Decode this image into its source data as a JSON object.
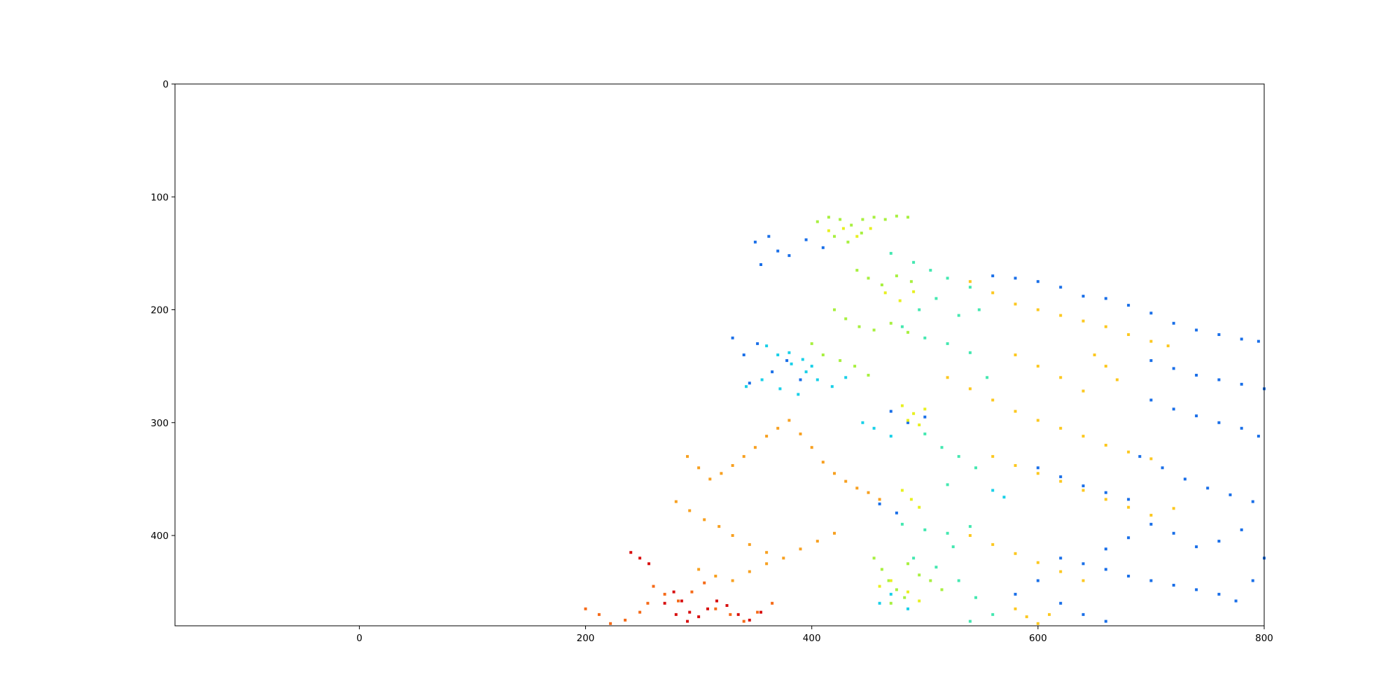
{
  "chart_data": {
    "type": "scatter",
    "title": "",
    "xlabel": "",
    "ylabel": "",
    "xlim": [
      -163,
      800
    ],
    "ylim": [
      480,
      0
    ],
    "y_inverted": true,
    "grid": false,
    "legend": "none",
    "x_ticks": [
      0,
      200,
      400,
      600,
      800
    ],
    "y_ticks": [
      0,
      100,
      200,
      300,
      400
    ],
    "series": [
      {
        "color": "#1a6fe8",
        "points": [
          [
            350,
            140
          ],
          [
            362,
            135
          ],
          [
            370,
            148
          ],
          [
            355,
            160
          ],
          [
            380,
            152
          ],
          [
            395,
            138
          ],
          [
            410,
            145
          ],
          [
            330,
            225
          ],
          [
            340,
            240
          ],
          [
            352,
            230
          ],
          [
            365,
            255
          ],
          [
            378,
            245
          ],
          [
            345,
            265
          ],
          [
            390,
            262
          ],
          [
            470,
            290
          ],
          [
            485,
            300
          ],
          [
            500,
            295
          ],
          [
            460,
            372
          ],
          [
            475,
            380
          ],
          [
            560,
            170
          ],
          [
            580,
            172
          ],
          [
            600,
            175
          ],
          [
            620,
            180
          ],
          [
            640,
            188
          ],
          [
            660,
            190
          ],
          [
            680,
            196
          ],
          [
            700,
            203
          ],
          [
            720,
            212
          ],
          [
            740,
            218
          ],
          [
            760,
            222
          ],
          [
            780,
            226
          ],
          [
            795,
            228
          ],
          [
            700,
            245
          ],
          [
            720,
            252
          ],
          [
            740,
            258
          ],
          [
            760,
            262
          ],
          [
            780,
            266
          ],
          [
            800,
            270
          ],
          [
            700,
            280
          ],
          [
            720,
            288
          ],
          [
            740,
            294
          ],
          [
            760,
            300
          ],
          [
            780,
            305
          ],
          [
            795,
            312
          ],
          [
            690,
            330
          ],
          [
            710,
            340
          ],
          [
            730,
            350
          ],
          [
            750,
            358
          ],
          [
            770,
            364
          ],
          [
            790,
            370
          ],
          [
            600,
            340
          ],
          [
            620,
            348
          ],
          [
            640,
            356
          ],
          [
            660,
            362
          ],
          [
            680,
            368
          ],
          [
            620,
            420
          ],
          [
            640,
            425
          ],
          [
            660,
            430
          ],
          [
            680,
            436
          ],
          [
            700,
            440
          ],
          [
            720,
            444
          ],
          [
            740,
            448
          ],
          [
            760,
            452
          ],
          [
            775,
            458
          ],
          [
            790,
            440
          ],
          [
            800,
            420
          ],
          [
            780,
            395
          ],
          [
            760,
            405
          ],
          [
            740,
            410
          ],
          [
            720,
            398
          ],
          [
            700,
            390
          ],
          [
            680,
            402
          ],
          [
            660,
            412
          ],
          [
            620,
            460
          ],
          [
            640,
            470
          ],
          [
            660,
            476
          ],
          [
            600,
            440
          ],
          [
            580,
            452
          ]
        ]
      },
      {
        "color": "#19d0e8",
        "points": [
          [
            360,
            232
          ],
          [
            370,
            240
          ],
          [
            382,
            248
          ],
          [
            395,
            255
          ],
          [
            405,
            262
          ],
          [
            418,
            268
          ],
          [
            430,
            260
          ],
          [
            342,
            268
          ],
          [
            356,
            262
          ],
          [
            372,
            270
          ],
          [
            388,
            275
          ],
          [
            380,
            238
          ],
          [
            392,
            244
          ],
          [
            400,
            250
          ],
          [
            445,
            300
          ],
          [
            455,
            305
          ],
          [
            470,
            312
          ],
          [
            560,
            360
          ],
          [
            570,
            366
          ],
          [
            460,
            460
          ],
          [
            470,
            452
          ],
          [
            485,
            465
          ]
        ]
      },
      {
        "color": "#44e8b0",
        "points": [
          [
            470,
            150
          ],
          [
            490,
            158
          ],
          [
            505,
            165
          ],
          [
            520,
            172
          ],
          [
            540,
            180
          ],
          [
            548,
            200
          ],
          [
            530,
            205
          ],
          [
            510,
            190
          ],
          [
            495,
            200
          ],
          [
            480,
            215
          ],
          [
            500,
            225
          ],
          [
            520,
            230
          ],
          [
            540,
            238
          ],
          [
            555,
            260
          ],
          [
            500,
            310
          ],
          [
            515,
            322
          ],
          [
            530,
            330
          ],
          [
            545,
            340
          ],
          [
            520,
            355
          ],
          [
            480,
            390
          ],
          [
            500,
            395
          ],
          [
            520,
            398
          ],
          [
            540,
            392
          ],
          [
            525,
            410
          ],
          [
            490,
            420
          ],
          [
            510,
            428
          ],
          [
            530,
            440
          ],
          [
            545,
            455
          ],
          [
            560,
            470
          ],
          [
            540,
            476
          ]
        ]
      },
      {
        "color": "#a8f040",
        "points": [
          [
            405,
            122
          ],
          [
            415,
            118
          ],
          [
            425,
            120
          ],
          [
            435,
            125
          ],
          [
            445,
            120
          ],
          [
            455,
            118
          ],
          [
            465,
            120
          ],
          [
            475,
            117
          ],
          [
            485,
            118
          ],
          [
            420,
            135
          ],
          [
            432,
            140
          ],
          [
            444,
            132
          ],
          [
            440,
            165
          ],
          [
            450,
            172
          ],
          [
            462,
            178
          ],
          [
            475,
            170
          ],
          [
            488,
            175
          ],
          [
            420,
            200
          ],
          [
            430,
            208
          ],
          [
            442,
            215
          ],
          [
            455,
            218
          ],
          [
            470,
            212
          ],
          [
            485,
            220
          ],
          [
            400,
            230
          ],
          [
            410,
            240
          ],
          [
            425,
            245
          ],
          [
            438,
            250
          ],
          [
            450,
            258
          ],
          [
            455,
            420
          ],
          [
            462,
            430
          ],
          [
            468,
            440
          ],
          [
            475,
            448
          ],
          [
            485,
            425
          ],
          [
            495,
            435
          ],
          [
            505,
            440
          ],
          [
            515,
            448
          ],
          [
            470,
            460
          ],
          [
            482,
            455
          ]
        ]
      },
      {
        "color": "#e8f020",
        "points": [
          [
            415,
            130
          ],
          [
            428,
            128
          ],
          [
            440,
            135
          ],
          [
            452,
            128
          ],
          [
            465,
            185
          ],
          [
            478,
            192
          ],
          [
            490,
            184
          ],
          [
            480,
            285
          ],
          [
            490,
            292
          ],
          [
            500,
            288
          ],
          [
            485,
            298
          ],
          [
            495,
            302
          ],
          [
            480,
            360
          ],
          [
            488,
            368
          ],
          [
            495,
            375
          ],
          [
            460,
            445
          ],
          [
            470,
            440
          ],
          [
            485,
            450
          ],
          [
            495,
            458
          ]
        ]
      },
      {
        "color": "#fcc820",
        "points": [
          [
            540,
            175
          ],
          [
            560,
            185
          ],
          [
            580,
            195
          ],
          [
            600,
            200
          ],
          [
            620,
            205
          ],
          [
            640,
            210
          ],
          [
            660,
            215
          ],
          [
            680,
            222
          ],
          [
            700,
            228
          ],
          [
            715,
            232
          ],
          [
            520,
            260
          ],
          [
            540,
            270
          ],
          [
            560,
            280
          ],
          [
            580,
            290
          ],
          [
            600,
            298
          ],
          [
            620,
            305
          ],
          [
            640,
            312
          ],
          [
            660,
            320
          ],
          [
            680,
            326
          ],
          [
            700,
            332
          ],
          [
            560,
            330
          ],
          [
            580,
            338
          ],
          [
            600,
            345
          ],
          [
            620,
            352
          ],
          [
            640,
            360
          ],
          [
            660,
            368
          ],
          [
            680,
            375
          ],
          [
            700,
            382
          ],
          [
            720,
            376
          ],
          [
            540,
            400
          ],
          [
            560,
            408
          ],
          [
            580,
            416
          ],
          [
            600,
            424
          ],
          [
            620,
            432
          ],
          [
            640,
            440
          ],
          [
            580,
            465
          ],
          [
            590,
            472
          ],
          [
            600,
            478
          ],
          [
            610,
            470
          ],
          [
            650,
            240
          ],
          [
            660,
            250
          ],
          [
            670,
            262
          ],
          [
            640,
            272
          ],
          [
            620,
            260
          ],
          [
            600,
            250
          ],
          [
            580,
            240
          ]
        ]
      },
      {
        "color": "#f7a020",
        "points": [
          [
            290,
            330
          ],
          [
            300,
            340
          ],
          [
            310,
            350
          ],
          [
            320,
            345
          ],
          [
            330,
            338
          ],
          [
            340,
            330
          ],
          [
            350,
            322
          ],
          [
            360,
            312
          ],
          [
            370,
            305
          ],
          [
            380,
            298
          ],
          [
            390,
            310
          ],
          [
            400,
            322
          ],
          [
            410,
            335
          ],
          [
            420,
            345
          ],
          [
            430,
            352
          ],
          [
            440,
            358
          ],
          [
            450,
            362
          ],
          [
            460,
            368
          ],
          [
            280,
            370
          ],
          [
            292,
            378
          ],
          [
            305,
            386
          ],
          [
            318,
            392
          ],
          [
            330,
            400
          ],
          [
            345,
            408
          ],
          [
            360,
            415
          ],
          [
            375,
            420
          ],
          [
            390,
            412
          ],
          [
            405,
            405
          ],
          [
            420,
            398
          ],
          [
            300,
            430
          ],
          [
            315,
            436
          ],
          [
            330,
            440
          ],
          [
            345,
            432
          ],
          [
            360,
            425
          ]
        ]
      },
      {
        "color": "#f56a18",
        "points": [
          [
            200,
            465
          ],
          [
            212,
            470
          ],
          [
            222,
            478
          ],
          [
            235,
            475
          ],
          [
            248,
            468
          ],
          [
            255,
            460
          ],
          [
            260,
            445
          ],
          [
            270,
            452
          ],
          [
            282,
            458
          ],
          [
            294,
            450
          ],
          [
            305,
            442
          ],
          [
            315,
            465
          ],
          [
            328,
            470
          ],
          [
            340,
            476
          ],
          [
            352,
            468
          ],
          [
            365,
            460
          ]
        ]
      },
      {
        "color": "#d81010",
        "points": [
          [
            270,
            460
          ],
          [
            278,
            450
          ],
          [
            285,
            458
          ],
          [
            292,
            468
          ],
          [
            300,
            472
          ],
          [
            308,
            465
          ],
          [
            316,
            458
          ],
          [
            325,
            462
          ],
          [
            335,
            470
          ],
          [
            345,
            475
          ],
          [
            355,
            468
          ],
          [
            280,
            470
          ],
          [
            290,
            476
          ],
          [
            240,
            415
          ],
          [
            248,
            420
          ],
          [
            256,
            425
          ]
        ]
      }
    ]
  }
}
